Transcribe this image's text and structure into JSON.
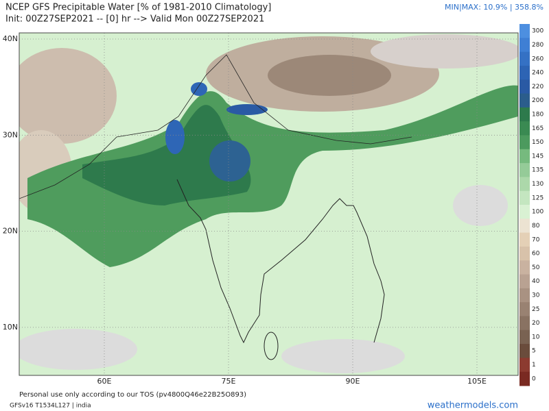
{
  "header": {
    "title": "NCEP GFS Precipitable Water [% of 1981-2010 Climatology]",
    "init": "Init: 00Z27SEP2021 -- [0] hr --> Valid Mon 00Z27SEP2021",
    "minmax": "MIN|MAX: 10.9% | 358.8%"
  },
  "map": {
    "lat_labels": [
      "40N",
      "30N",
      "20N",
      "10N"
    ],
    "lon_labels": [
      "60E",
      "75E",
      "90E",
      "105E"
    ]
  },
  "colorbar": {
    "labels": [
      "300",
      "280",
      "260",
      "240",
      "220",
      "200",
      "180",
      "165",
      "150",
      "145",
      "135",
      "130",
      "125",
      "100",
      "80",
      "70",
      "60",
      "50",
      "40",
      "30",
      "25",
      "20",
      "10",
      "5",
      "1",
      "0"
    ],
    "colors": [
      "#4d8fe0",
      "#3f7fd4",
      "#3571c4",
      "#2d64b4",
      "#2a5aa4",
      "#2b5d8c",
      "#2d7a4c",
      "#3a8a52",
      "#4c9a5e",
      "#76ba7e",
      "#95cb98",
      "#acd8aa",
      "#c4e6c0",
      "#d9f1d3",
      "#ece3d2",
      "#e4d0b6",
      "#d8c2aa",
      "#c9b2a0",
      "#b9a292",
      "#a99282",
      "#998272",
      "#897262",
      "#796252",
      "#6a4c3c",
      "#8c3b30",
      "#7a2a22"
    ]
  },
  "footer": {
    "tos": "Personal use only according to our TOS (pv4800Q46e22B25O893)",
    "model": "GFSv16 T1534L127 | india",
    "brand": "weathermodels.com"
  }
}
